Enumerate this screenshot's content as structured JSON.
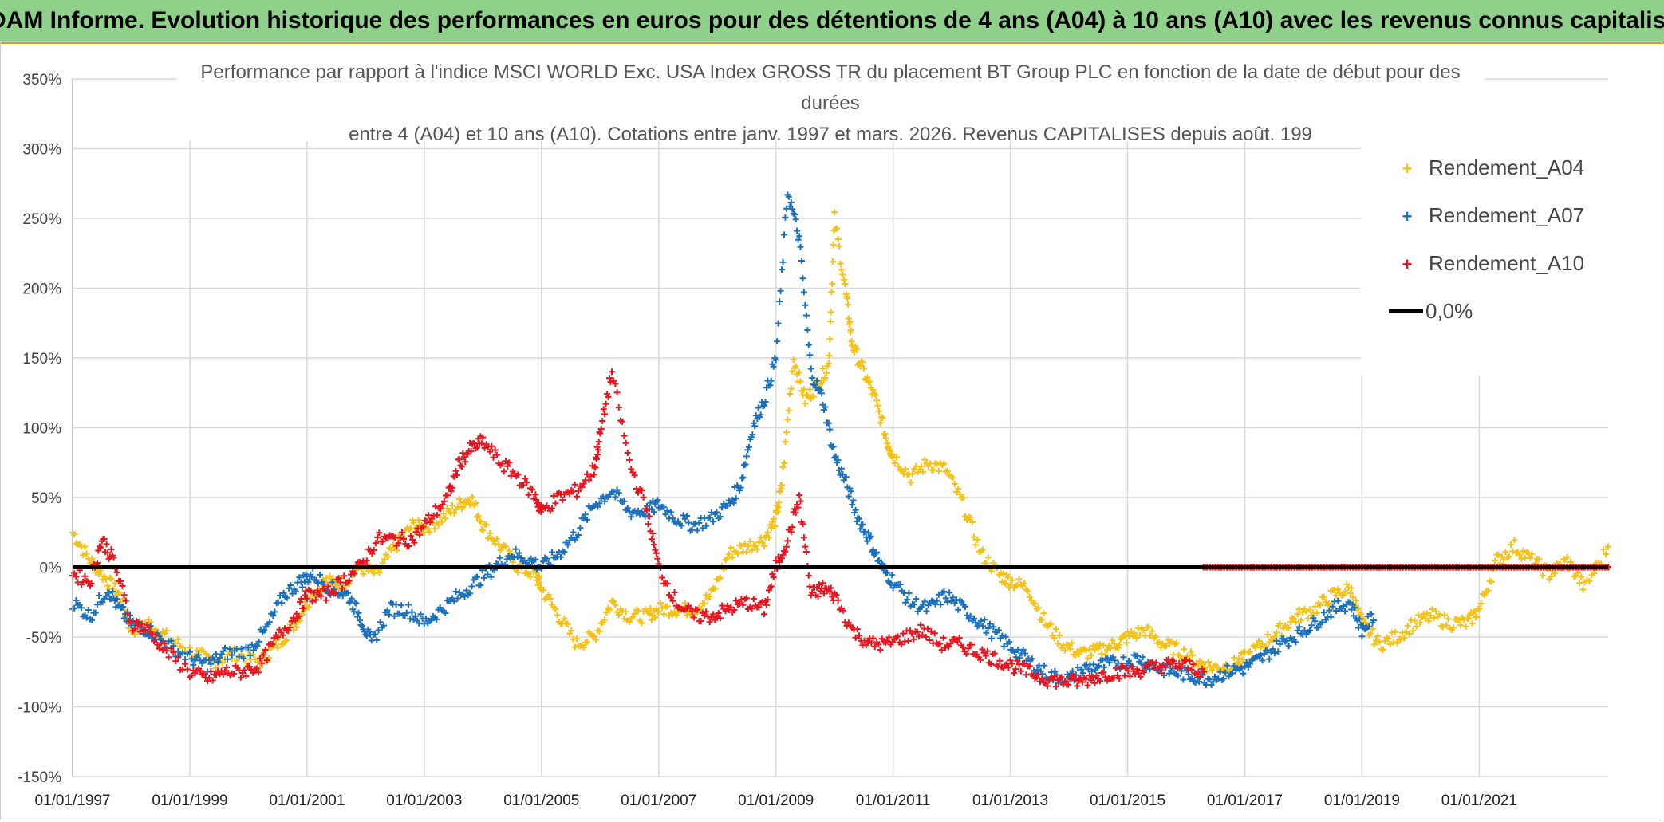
{
  "header": {
    "title": "ADAM Informe. Evolution historique des performances en euros pour des détentions de 4 ans (A04) à 10 ans (A10) avec les revenus connus capitalisés"
  },
  "colors": {
    "banner_bg": "#8fd18a",
    "a04": "#f5c116",
    "a07": "#1a70bd",
    "a10": "#e8141e",
    "zero_line": "#000000",
    "grid": "#d9d9d9"
  },
  "chart_data": {
    "type": "scatter",
    "title_lines": [
      "Performance par rapport à l'indice MSCI WORLD Exc. USA Index GROSS TR  du placement BT Group PLC en fonction de la date de début pour des",
      "durées",
      "entre 4 (A04) et 10 ans (A10). Cotations entre janv. 1997 et mars. 2026. Revenus CAPITALISES depuis août. 199"
    ],
    "y_ticks": [
      "350%",
      "300%",
      "250%",
      "200%",
      "150%",
      "100%",
      "50%",
      "0%",
      "-50%",
      "-100%",
      "-150%"
    ],
    "y_tick_values": [
      350,
      300,
      250,
      200,
      150,
      100,
      50,
      0,
      -50,
      -100,
      -150
    ],
    "ylim": [
      -150,
      350
    ],
    "x_ticks": [
      "01/01/1997",
      "01/01/1999",
      "01/01/2001",
      "01/01/2003",
      "01/01/2005",
      "01/01/2007",
      "01/01/2009",
      "01/01/2011",
      "01/01/2013",
      "01/01/2015",
      "01/01/2017",
      "01/01/2019",
      "01/01/2021"
    ],
    "x_tick_years": [
      1997,
      1999,
      2001,
      2003,
      2005,
      2007,
      2009,
      2011,
      2013,
      2015,
      2017,
      2019,
      2021
    ],
    "xlim": [
      1997.0,
      2023.2
    ],
    "legend": [
      "Rendement_A04",
      "Rendement_A07",
      "Rendement_A10",
      "0,0%"
    ],
    "legend_position": "top-right",
    "series": [
      {
        "name": "Rendement_A04",
        "color": "#f5c116",
        "x": [
          1997.0,
          1997.3,
          1997.6,
          1997.8,
          1998.0,
          1998.3,
          1998.6,
          1999.0,
          1999.4,
          1999.8,
          2000.2,
          2000.5,
          2000.8,
          2001.0,
          2001.3,
          2001.6,
          2001.9,
          2002.2,
          2002.5,
          2002.8,
          2003.0,
          2003.3,
          2003.6,
          2003.8,
          2004.0,
          2004.3,
          2004.6,
          2004.9,
          2005.0,
          2005.3,
          2005.6,
          2005.9,
          2006.2,
          2006.5,
          2006.8,
          2007.0,
          2007.3,
          2007.6,
          2007.9,
          2008.2,
          2008.5,
          2008.8,
          2009.0,
          2009.1,
          2009.3,
          2009.5,
          2009.7,
          2009.9,
          2010.0,
          2010.2,
          2010.3,
          2010.5,
          2010.7,
          2010.9,
          2011.0,
          2011.3,
          2011.6,
          2011.9,
          2012.2,
          2012.5,
          2012.8,
          2013.0,
          2013.3,
          2013.6,
          2013.9,
          2014.2,
          2014.5,
          2014.8,
          2015.0,
          2015.3,
          2015.6,
          2015.9,
          2016.2,
          2016.5,
          2016.8,
          2017.0,
          2017.3,
          2017.6,
          2017.9,
          2018.2,
          2018.5,
          2018.8,
          2019.0,
          2019.3,
          2019.6,
          2019.9,
          2020.2,
          2020.5,
          2020.8,
          2021.0,
          2021.3,
          2021.6,
          2021.9,
          2022.2,
          2022.5,
          2022.8,
          2023.2
        ],
        "y": [
          25,
          5,
          -10,
          -20,
          -45,
          -40,
          -50,
          -60,
          -68,
          -62,
          -68,
          -55,
          -40,
          -25,
          -10,
          -12,
          0,
          -5,
          15,
          30,
          28,
          35,
          45,
          50,
          30,
          15,
          0,
          -5,
          -15,
          -35,
          -55,
          -50,
          -25,
          -35,
          -35,
          -30,
          -30,
          -30,
          -20,
          10,
          15,
          20,
          35,
          60,
          150,
          120,
          130,
          145,
          250,
          195,
          160,
          140,
          120,
          90,
          80,
          65,
          75,
          70,
          45,
          10,
          -5,
          -10,
          -15,
          -40,
          -55,
          -62,
          -60,
          -55,
          -50,
          -45,
          -55,
          -60,
          -68,
          -72,
          -70,
          -65,
          -55,
          -45,
          -35,
          -30,
          -20,
          -15,
          -40,
          -55,
          -50,
          -40,
          -35,
          -40,
          -40,
          -30,
          5,
          15,
          5,
          -5,
          5,
          -15,
          15
        ]
      },
      {
        "name": "Rendement_A07",
        "color": "#1a70bd",
        "x": [
          1997.0,
          1997.3,
          1997.6,
          1997.8,
          1998.0,
          1998.3,
          1998.6,
          1999.0,
          1999.3,
          1999.6,
          2000.0,
          2000.3,
          2000.6,
          2000.9,
          2001.1,
          2001.4,
          2001.7,
          2001.9,
          2002.1,
          2002.4,
          2002.7,
          2003.0,
          2003.3,
          2003.6,
          2003.9,
          2004.2,
          2004.5,
          2004.8,
          2005.0,
          2005.3,
          2005.6,
          2005.9,
          2006.2,
          2006.5,
          2006.8,
          2007.0,
          2007.3,
          2007.6,
          2007.9,
          2008.2,
          2008.4,
          2008.6,
          2008.8,
          2009.0,
          2009.2,
          2009.4,
          2009.6,
          2009.8,
          2010.0,
          2010.2,
          2010.4,
          2010.6,
          2010.8,
          2011.0,
          2011.3,
          2011.6,
          2011.9,
          2012.2,
          2012.5,
          2012.8,
          2013.1,
          2013.4,
          2013.7,
          2014.0,
          2014.3,
          2014.6,
          2014.9,
          2015.2,
          2015.5,
          2015.8,
          2016.1,
          2016.4,
          2016.7,
          2017.0,
          2017.3,
          2017.6,
          2017.9,
          2018.2,
          2018.5,
          2018.8,
          2019.0,
          2019.2
        ],
        "y": [
          -25,
          -35,
          -15,
          -30,
          -40,
          -45,
          -55,
          -65,
          -70,
          -62,
          -60,
          -45,
          -20,
          -10,
          -5,
          -15,
          -20,
          -35,
          -55,
          -30,
          -30,
          -40,
          -30,
          -20,
          -10,
          0,
          10,
          5,
          0,
          10,
          25,
          45,
          55,
          40,
          40,
          45,
          35,
          30,
          35,
          45,
          60,
          100,
          120,
          150,
          270,
          235,
          140,
          120,
          80,
          60,
          35,
          20,
          0,
          -10,
          -25,
          -30,
          -20,
          -30,
          -40,
          -50,
          -60,
          -70,
          -78,
          -80,
          -72,
          -70,
          -68,
          -65,
          -72,
          -75,
          -78,
          -80,
          -75,
          -72,
          -65,
          -55,
          -48,
          -40,
          -30,
          -25,
          -45,
          -35
        ]
      },
      {
        "name": "Rendement_A10",
        "color": "#e8141e",
        "x": [
          1997.0,
          1997.3,
          1997.5,
          1997.7,
          1998.0,
          1998.3,
          1998.6,
          1999.0,
          1999.3,
          1999.6,
          1999.9,
          2000.2,
          2000.5,
          2000.8,
          2001.0,
          2001.3,
          2001.6,
          2001.9,
          2002.2,
          2002.5,
          2002.8,
          2003.1,
          2003.4,
          2003.6,
          2003.8,
          2004.0,
          2004.3,
          2004.6,
          2004.9,
          2005.0,
          2005.3,
          2005.6,
          2005.9,
          2006.0,
          2006.2,
          2006.5,
          2006.8,
          2007.0,
          2007.3,
          2007.6,
          2007.9,
          2008.2,
          2008.5,
          2008.8,
          2009.0,
          2009.2,
          2009.4,
          2009.6,
          2009.8,
          2010.0,
          2010.3,
          2010.6,
          2010.9,
          2011.2,
          2011.5,
          2011.8,
          2012.1,
          2012.4,
          2012.7,
          2013.0,
          2013.3,
          2013.6,
          2013.9,
          2014.2,
          2014.5,
          2014.8,
          2015.1,
          2015.4,
          2015.7,
          2016.0,
          2016.3
        ],
        "y": [
          -5,
          -10,
          20,
          5,
          -40,
          -45,
          -60,
          -75,
          -80,
          -75,
          -75,
          -70,
          -50,
          -35,
          -20,
          -20,
          -10,
          0,
          20,
          20,
          20,
          35,
          50,
          75,
          85,
          90,
          75,
          65,
          50,
          40,
          50,
          55,
          70,
          95,
          140,
          75,
          40,
          0,
          -25,
          -35,
          -35,
          -30,
          -25,
          -30,
          0,
          20,
          50,
          -20,
          -15,
          -20,
          -45,
          -55,
          -55,
          -50,
          -45,
          -55,
          -55,
          -60,
          -65,
          -70,
          -75,
          -80,
          -82,
          -82,
          -78,
          -75,
          -75,
          -72,
          -70,
          -70,
          -75
        ]
      },
      {
        "name": "0,0%",
        "color": "#000000",
        "x": [
          1997.0,
          2023.2
        ],
        "y": [
          0,
          0
        ]
      }
    ]
  }
}
